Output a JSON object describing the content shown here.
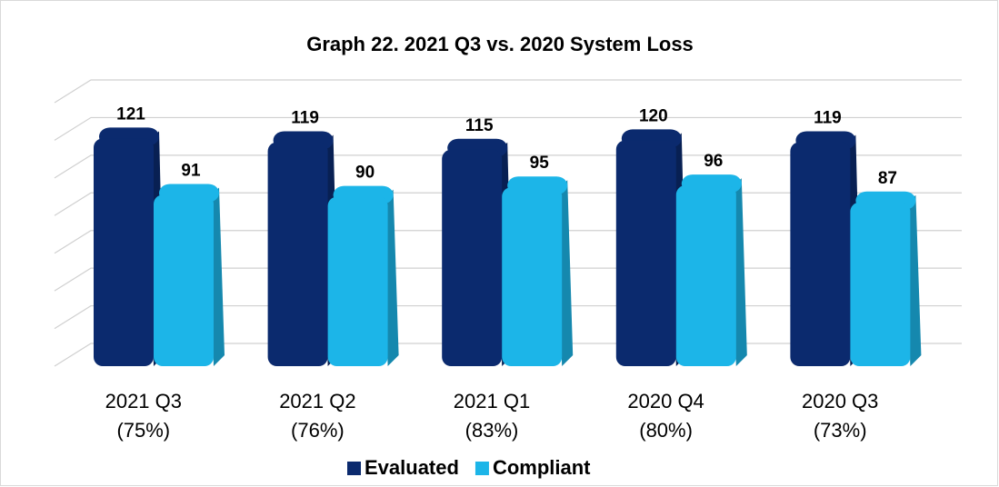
{
  "chart_data": {
    "type": "bar3d",
    "title": "Graph 22. 2021 Q3 vs. 2020 System Loss",
    "categories": [
      [
        "2021 Q3",
        "(75%)"
      ],
      [
        "2021 Q2",
        "(76%)"
      ],
      [
        "2021 Q1",
        "(83%)"
      ],
      [
        "2020 Q4",
        "(80%)"
      ],
      [
        "2020 Q3",
        "(73%)"
      ]
    ],
    "series": [
      {
        "name": "Evaluated",
        "color": "#0b2a6e",
        "values": [
          121,
          119,
          115,
          120,
          119
        ]
      },
      {
        "name": "Compliant",
        "color": "#1cb5e8",
        "values": [
          91,
          90,
          95,
          96,
          87
        ]
      }
    ],
    "ylim": [
      0,
      140
    ],
    "yticks": [
      0,
      20,
      40,
      60,
      80,
      100,
      120,
      140
    ],
    "grid": true,
    "legend": "bottom"
  }
}
